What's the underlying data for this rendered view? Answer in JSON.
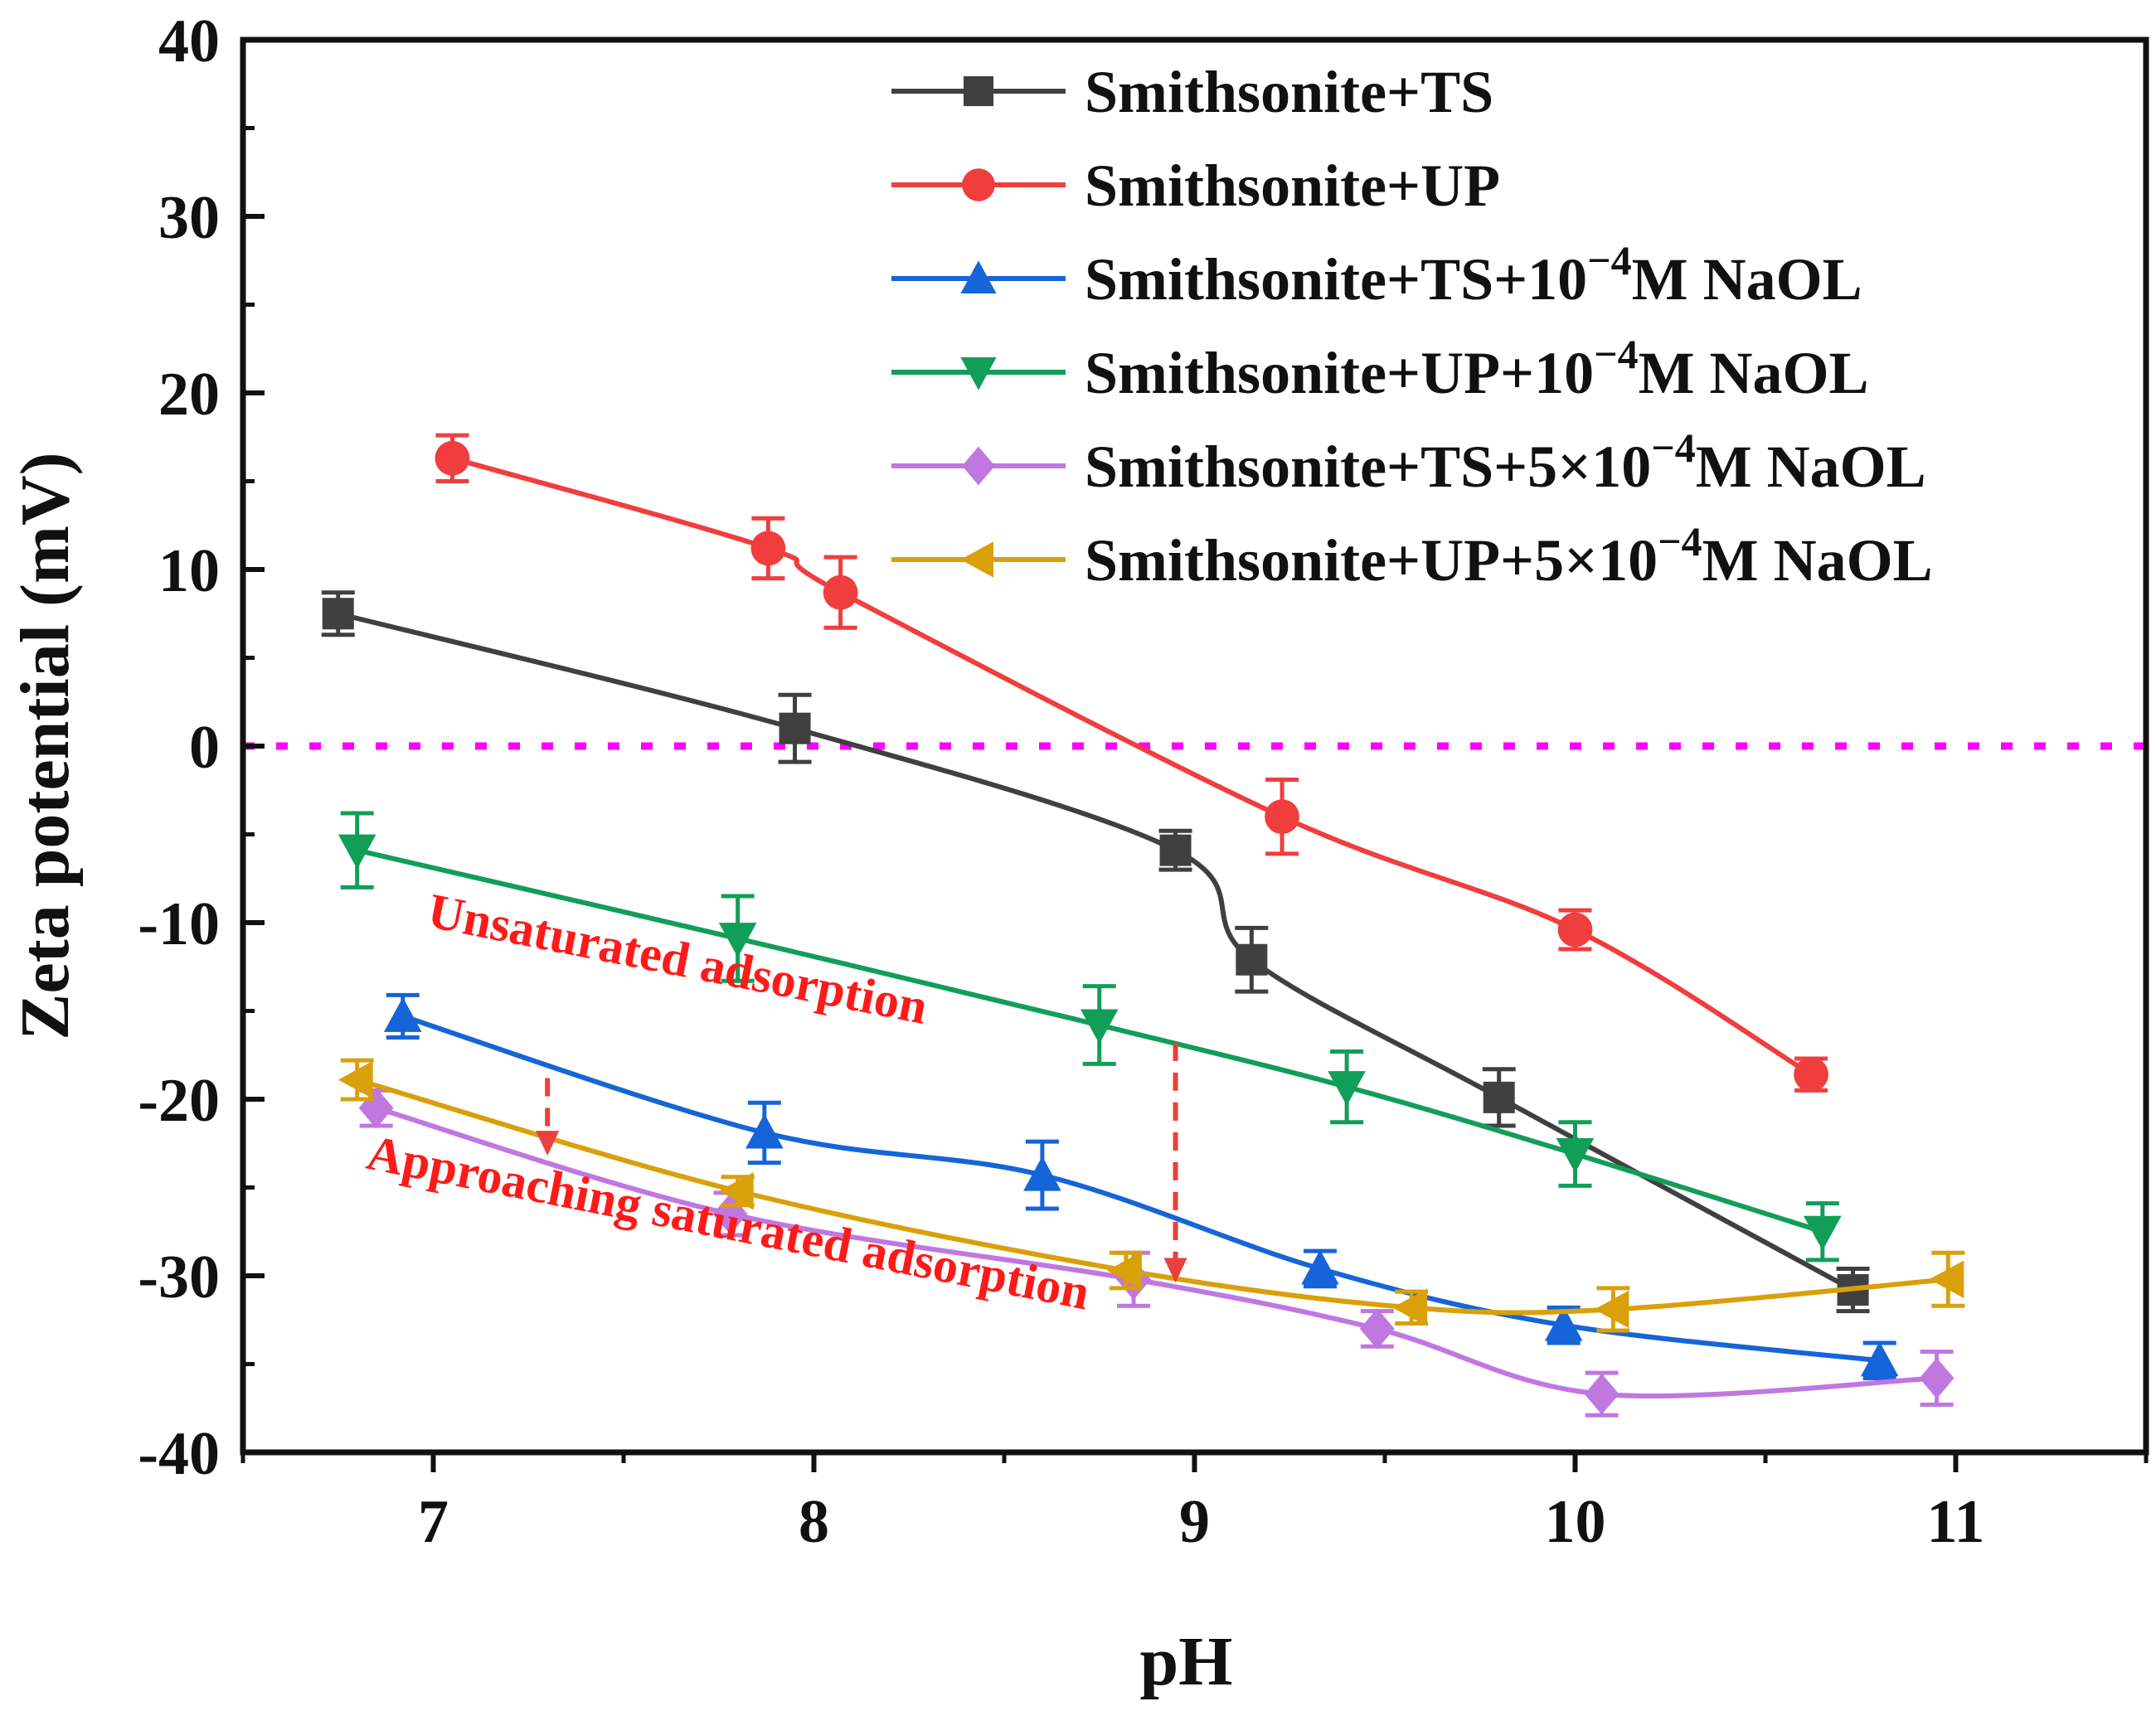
{
  "chart_data": {
    "type": "line",
    "title": "",
    "xlabel": "pH",
    "ylabel": "Zeta potential (mV)",
    "xlim": [
      6.5,
      11.5
    ],
    "ylim": [
      -40,
      40
    ],
    "xticks": [
      7,
      8,
      9,
      10,
      11
    ],
    "yticks": [
      -40,
      -30,
      -20,
      -10,
      0,
      10,
      20,
      30,
      40
    ],
    "zero_line": {
      "y": 0,
      "color": "#ff00ff",
      "style": "dotted"
    },
    "series": [
      {
        "name": "Smithsonite+TS",
        "label_main": "Smithsonite+TS",
        "label_sup": "",
        "label_tail": "",
        "color": "#404040",
        "marker": "square",
        "points": [
          {
            "x": 6.75,
            "y": 7.5,
            "err": 1.2
          },
          {
            "x": 7.95,
            "y": 1.0,
            "err": 1.9
          },
          {
            "x": 8.95,
            "y": -5.9,
            "err": 1.1
          },
          {
            "x": 9.15,
            "y": -12.1,
            "err": 1.8
          },
          {
            "x": 9.8,
            "y": -19.9,
            "err": 1.6
          },
          {
            "x": 10.73,
            "y": -30.8,
            "err": 1.2
          }
        ]
      },
      {
        "name": "Smithsonite+UP",
        "label_main": "Smithsonite+UP",
        "label_sup": "",
        "label_tail": "",
        "color": "#f03e3e",
        "marker": "circle",
        "points": [
          {
            "x": 7.05,
            "y": 16.3,
            "err": 1.3
          },
          {
            "x": 7.88,
            "y": 11.2,
            "err": 1.7
          },
          {
            "x": 8.07,
            "y": 8.7,
            "err": 2.0
          },
          {
            "x": 9.23,
            "y": -4.0,
            "err": 2.1
          },
          {
            "x": 10.0,
            "y": -10.4,
            "err": 1.1
          },
          {
            "x": 10.62,
            "y": -18.6,
            "err": 0.9
          }
        ]
      },
      {
        "name": "Smithsonite+TS+10−4M NaOL",
        "label_main": "Smithsonite+TS+10",
        "label_sup": "−4",
        "label_tail": "M NaOL",
        "color": "#1565d8",
        "marker": "triangle-up",
        "points": [
          {
            "x": 6.92,
            "y": -15.3,
            "err": 1.2
          },
          {
            "x": 7.87,
            "y": -21.9,
            "err": 1.7
          },
          {
            "x": 8.6,
            "y": -24.3,
            "err": 1.9
          },
          {
            "x": 9.33,
            "y": -29.6,
            "err": 1.0
          },
          {
            "x": 9.97,
            "y": -32.8,
            "err": 1.0
          },
          {
            "x": 10.8,
            "y": -34.8,
            "err": 1.0
          }
        ]
      },
      {
        "name": "Smithsonite+UP+10−4M NaOL",
        "label_main": "Smithsonite+UP+10",
        "label_sup": "−4",
        "label_tail": "M NaOL",
        "color": "#119e58",
        "marker": "triangle-down",
        "points": [
          {
            "x": 6.8,
            "y": -5.9,
            "err": 2.1
          },
          {
            "x": 7.8,
            "y": -10.9,
            "err": 2.4
          },
          {
            "x": 8.75,
            "y": -15.8,
            "err": 2.2
          },
          {
            "x": 9.4,
            "y": -19.3,
            "err": 2.0
          },
          {
            "x": 10.0,
            "y": -23.1,
            "err": 1.8
          },
          {
            "x": 10.65,
            "y": -27.5,
            "err": 1.6
          }
        ]
      },
      {
        "name": "Smithsonite+TS+5×10−4M NaOL",
        "label_main": "Smithsonite+TS+5×10",
        "label_sup": "−4",
        "label_tail": "M NaOL",
        "color": "#c077e0",
        "marker": "diamond",
        "points": [
          {
            "x": 6.85,
            "y": -20.5,
            "err": 1.0
          },
          {
            "x": 7.78,
            "y": -26.5,
            "err": 1.2
          },
          {
            "x": 8.84,
            "y": -30.2,
            "err": 1.5
          },
          {
            "x": 9.48,
            "y": -33.0,
            "err": 1.0
          },
          {
            "x": 10.07,
            "y": -36.7,
            "err": 1.2
          },
          {
            "x": 10.95,
            "y": -35.8,
            "err": 1.5
          }
        ]
      },
      {
        "name": "Smithsonite+UP+5×10−4M NaOL",
        "label_main": "Smithsonite+UP+5×10",
        "label_sup": "−4",
        "label_tail": "M NaOL",
        "color": "#d9a00a",
        "marker": "triangle-left",
        "points": [
          {
            "x": 6.8,
            "y": -18.9,
            "err": 1.1
          },
          {
            "x": 7.8,
            "y": -25.2,
            "err": 0.8
          },
          {
            "x": 8.82,
            "y": -29.7,
            "err": 1.0
          },
          {
            "x": 9.57,
            "y": -31.8,
            "err": 0.9
          },
          {
            "x": 10.1,
            "y": -31.9,
            "err": 1.2
          },
          {
            "x": 10.98,
            "y": -30.2,
            "err": 1.5
          }
        ]
      }
    ],
    "annotations": [
      {
        "text": "Unsaturated adsorption",
        "x": 6.98,
        "y": -10.2,
        "color": "#ff1a1a"
      },
      {
        "text": "Approaching saturated adsorption",
        "x": 6.82,
        "y": -23.9,
        "color": "#ff1a1a"
      }
    ],
    "arrows": [
      {
        "x": 7.3,
        "y_from": -18.8,
        "y_to": -23.2,
        "color": "#e8403a"
      },
      {
        "x": 8.95,
        "y_from": -16.8,
        "y_to": -30.4,
        "color": "#e8403a"
      }
    ]
  }
}
